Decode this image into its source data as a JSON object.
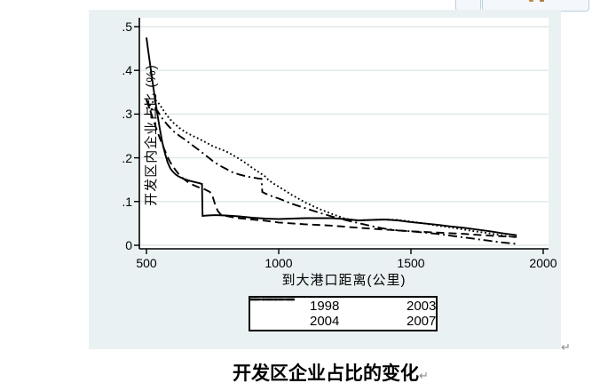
{
  "toolbar_fragment": {
    "icon_colors": [
      "#c08a3e",
      "#b8793c"
    ],
    "border_color": "#b9cfe6"
  },
  "marks": {
    "pilcrow": "↵"
  },
  "chart": {
    "background": "#eaf1f3",
    "plot_background": "#ffffff",
    "gridline_color": "#dde9ea",
    "axis_color": "#000000",
    "line_color": "#000000"
  },
  "chart_data": {
    "type": "line",
    "title": "开发区企业占比的变化",
    "xlabel": "到大港口距离(公里)",
    "ylabel": "开发区内企业占比 (%)",
    "xlim": [
      473,
      2020
    ],
    "ylim": [
      -0.008,
      0.52
    ],
    "x_ticks": [
      500,
      1000,
      1500,
      2000
    ],
    "y_ticks": [
      0,
      0.1,
      0.2,
      0.3,
      0.4,
      0.5
    ],
    "y_tick_labels": [
      "0",
      ".1",
      ".2",
      ".3",
      ".4",
      ".5"
    ],
    "grid": true,
    "legend_position": "below",
    "series": [
      {
        "name": "1998",
        "style": "solid",
        "points": [
          [
            500,
            0.475
          ],
          [
            505,
            0.452
          ],
          [
            510,
            0.43
          ],
          [
            520,
            0.386
          ],
          [
            530,
            0.345
          ],
          [
            540,
            0.305
          ],
          [
            550,
            0.268
          ],
          [
            560,
            0.235
          ],
          [
            570,
            0.21
          ],
          [
            580,
            0.19
          ],
          [
            590,
            0.176
          ],
          [
            600,
            0.168
          ],
          [
            610,
            0.162
          ],
          [
            620,
            0.158
          ],
          [
            640,
            0.152
          ],
          [
            660,
            0.148
          ],
          [
            680,
            0.145
          ],
          [
            700,
            0.142
          ],
          [
            710,
            0.14
          ],
          [
            712,
            0.067
          ],
          [
            730,
            0.068
          ],
          [
            760,
            0.069
          ],
          [
            800,
            0.068
          ],
          [
            850,
            0.066
          ],
          [
            900,
            0.063
          ],
          [
            950,
            0.061
          ],
          [
            1000,
            0.06
          ],
          [
            1050,
            0.061
          ],
          [
            1100,
            0.062
          ],
          [
            1150,
            0.062
          ],
          [
            1200,
            0.062
          ],
          [
            1250,
            0.06
          ],
          [
            1300,
            0.057
          ],
          [
            1350,
            0.058
          ],
          [
            1400,
            0.059
          ],
          [
            1450,
            0.057
          ],
          [
            1500,
            0.053
          ],
          [
            1550,
            0.05
          ],
          [
            1600,
            0.047
          ],
          [
            1650,
            0.043
          ],
          [
            1700,
            0.04
          ],
          [
            1750,
            0.036
          ],
          [
            1800,
            0.032
          ],
          [
            1850,
            0.027
          ],
          [
            1900,
            0.023
          ]
        ]
      },
      {
        "name": "2003",
        "style": "dashed",
        "points": [
          [
            500,
            0.335
          ],
          [
            510,
            0.315
          ],
          [
            520,
            0.298
          ],
          [
            530,
            0.28
          ],
          [
            540,
            0.262
          ],
          [
            550,
            0.246
          ],
          [
            560,
            0.23
          ],
          [
            570,
            0.216
          ],
          [
            580,
            0.202
          ],
          [
            590,
            0.19
          ],
          [
            600,
            0.18
          ],
          [
            610,
            0.172
          ],
          [
            620,
            0.164
          ],
          [
            640,
            0.152
          ],
          [
            660,
            0.143
          ],
          [
            680,
            0.137
          ],
          [
            700,
            0.132
          ],
          [
            720,
            0.128
          ],
          [
            740,
            0.122
          ],
          [
            750,
            0.112
          ],
          [
            760,
            0.092
          ],
          [
            770,
            0.078
          ],
          [
            780,
            0.071
          ],
          [
            800,
            0.067
          ],
          [
            825,
            0.064
          ],
          [
            850,
            0.062
          ],
          [
            900,
            0.059
          ],
          [
            950,
            0.056
          ],
          [
            1000,
            0.052
          ],
          [
            1100,
            0.048
          ],
          [
            1200,
            0.045
          ],
          [
            1300,
            0.04
          ],
          [
            1400,
            0.036
          ],
          [
            1500,
            0.032
          ],
          [
            1600,
            0.029
          ],
          [
            1700,
            0.026
          ],
          [
            1800,
            0.022
          ],
          [
            1900,
            0.019
          ]
        ]
      },
      {
        "name": "2004",
        "style": "dotted",
        "points": [
          [
            500,
            0.313
          ],
          [
            510,
            0.318
          ],
          [
            520,
            0.326
          ],
          [
            535,
            0.332
          ],
          [
            550,
            0.322
          ],
          [
            565,
            0.308
          ],
          [
            580,
            0.295
          ],
          [
            600,
            0.281
          ],
          [
            625,
            0.268
          ],
          [
            650,
            0.258
          ],
          [
            675,
            0.25
          ],
          [
            700,
            0.243
          ],
          [
            725,
            0.235
          ],
          [
            750,
            0.227
          ],
          [
            775,
            0.221
          ],
          [
            800,
            0.215
          ],
          [
            825,
            0.207
          ],
          [
            850,
            0.198
          ],
          [
            875,
            0.188
          ],
          [
            900,
            0.177
          ],
          [
            925,
            0.167
          ],
          [
            950,
            0.157
          ],
          [
            960,
            0.15
          ],
          [
            975,
            0.143
          ],
          [
            1000,
            0.134
          ],
          [
            1050,
            0.115
          ],
          [
            1100,
            0.098
          ],
          [
            1150,
            0.084
          ],
          [
            1200,
            0.072
          ],
          [
            1250,
            0.061
          ],
          [
            1280,
            0.058
          ],
          [
            1300,
            0.057
          ],
          [
            1350,
            0.058
          ],
          [
            1400,
            0.059
          ],
          [
            1450,
            0.058
          ],
          [
            1500,
            0.054
          ],
          [
            1550,
            0.05
          ],
          [
            1600,
            0.045
          ],
          [
            1650,
            0.041
          ],
          [
            1700,
            0.036
          ],
          [
            1750,
            0.031
          ],
          [
            1800,
            0.027
          ],
          [
            1850,
            0.022
          ],
          [
            1900,
            0.018
          ]
        ]
      },
      {
        "name": "2007",
        "style": "dashdot",
        "points": [
          [
            500,
            0.332
          ],
          [
            505,
            0.324
          ],
          [
            510,
            0.316
          ],
          [
            515,
            0.308
          ],
          [
            522,
            0.313
          ],
          [
            530,
            0.317
          ],
          [
            545,
            0.304
          ],
          [
            560,
            0.29
          ],
          [
            580,
            0.275
          ],
          [
            600,
            0.262
          ],
          [
            625,
            0.25
          ],
          [
            650,
            0.24
          ],
          [
            675,
            0.228
          ],
          [
            700,
            0.217
          ],
          [
            725,
            0.205
          ],
          [
            750,
            0.193
          ],
          [
            775,
            0.183
          ],
          [
            800,
            0.175
          ],
          [
            825,
            0.167
          ],
          [
            850,
            0.162
          ],
          [
            875,
            0.158
          ],
          [
            900,
            0.155
          ],
          [
            920,
            0.153
          ],
          [
            935,
            0.152
          ],
          [
            938,
            0.122
          ],
          [
            950,
            0.118
          ],
          [
            975,
            0.112
          ],
          [
            1000,
            0.107
          ],
          [
            1050,
            0.095
          ],
          [
            1100,
            0.085
          ],
          [
            1150,
            0.075
          ],
          [
            1200,
            0.066
          ],
          [
            1250,
            0.058
          ],
          [
            1300,
            0.051
          ],
          [
            1350,
            0.044
          ],
          [
            1400,
            0.038
          ],
          [
            1450,
            0.034
          ],
          [
            1500,
            0.032
          ],
          [
            1550,
            0.029
          ],
          [
            1600,
            0.026
          ],
          [
            1650,
            0.022
          ],
          [
            1700,
            0.018
          ],
          [
            1750,
            0.014
          ],
          [
            1800,
            0.01
          ],
          [
            1850,
            0.006
          ],
          [
            1900,
            0.003
          ]
        ]
      }
    ]
  }
}
